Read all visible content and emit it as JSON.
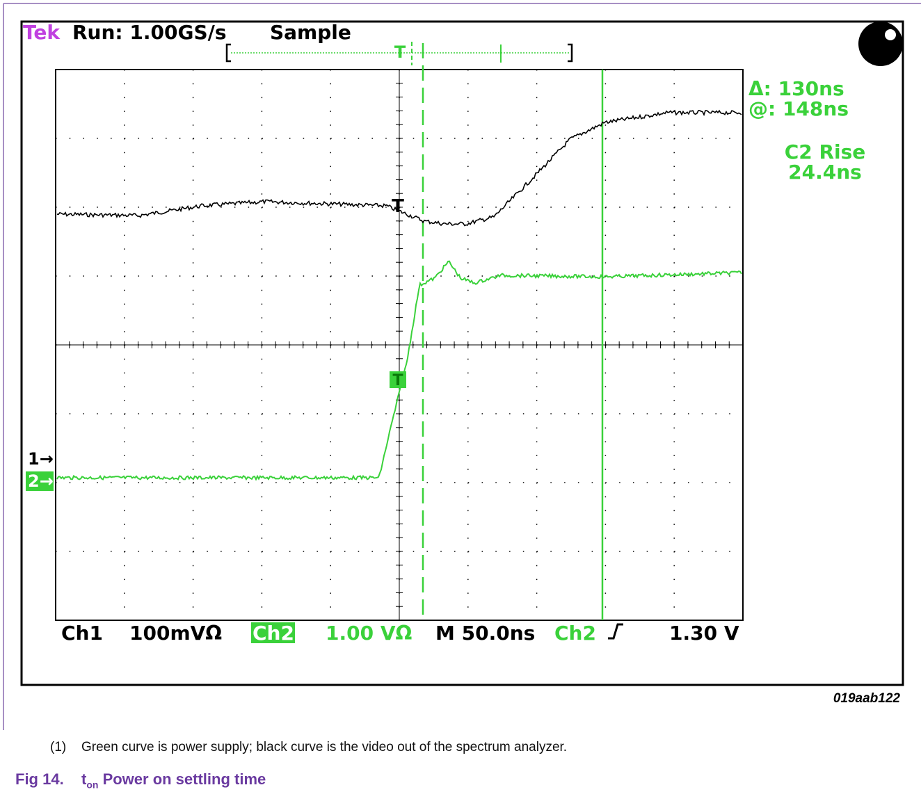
{
  "header": {
    "brand": "Tek",
    "run": "Run: 1.00GS/s",
    "mode": "Sample"
  },
  "readout": {
    "delta": "Δ: 130ns",
    "at": "@: 148ns",
    "measure_name": "C2 Rise",
    "measure_value": "24.4ns"
  },
  "markers": {
    "ch1": "1→",
    "ch2": "2→",
    "trigger": "T"
  },
  "status": {
    "ch1": "Ch1",
    "ch1_scale": "100mVΩ",
    "ch2": "Ch2",
    "ch2_scale": "1.00 VΩ",
    "timebase": "M 50.0ns",
    "trigger_source": "Ch2",
    "trigger_level": "1.30 V"
  },
  "figure_id": "019aab122",
  "note": {
    "number": "(1)",
    "text": "Green curve is power supply; black curve is the video out of the spectrum analyzer."
  },
  "caption": {
    "label": "Fig 14.",
    "symbol": "t",
    "subscript": "on",
    "title": "Power on settling time"
  }
}
